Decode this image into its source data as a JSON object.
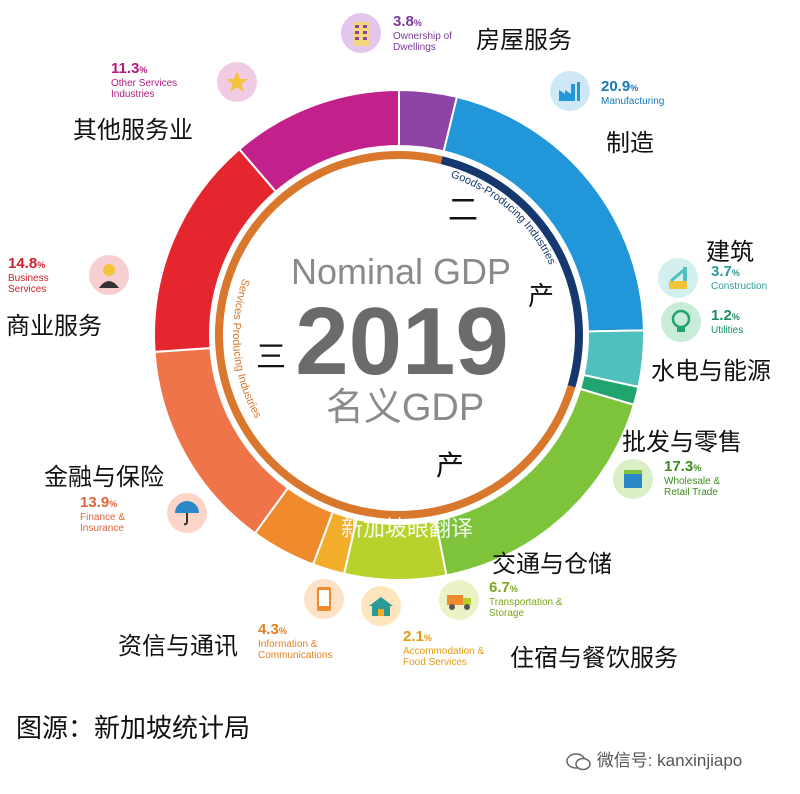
{
  "chart_data": {
    "type": "pie",
    "title": "Nominal GDP",
    "year": "2019",
    "title_cn": "名义GDP",
    "inner_ring": [
      {
        "label": "Goods-Producing Industries",
        "label_cn_top": "二",
        "label_cn_bottom": "产",
        "color": "#16386e"
      },
      {
        "label": "Services Producing Industries",
        "label_cn_left": "三",
        "label_cn_bottom": "产",
        "color": "#d9772d"
      }
    ],
    "slices": [
      {
        "pct": "3.8",
        "value": 3.8,
        "en": "Ownership of\nDwellings",
        "cn": "房屋服务",
        "color": "#8e44a6"
      },
      {
        "pct": "20.9",
        "value": 20.9,
        "en": "Manufacturing",
        "cn": "制造",
        "color": "#2196d8"
      },
      {
        "pct": "3.7",
        "value": 3.7,
        "en": "Construction",
        "cn": "建筑",
        "color": "#4fc0bd"
      },
      {
        "pct": "1.2",
        "value": 1.2,
        "en": "Utilities",
        "cn": "水电与能源",
        "color": "#1fa56d"
      },
      {
        "pct": "17.3",
        "value": 17.3,
        "en": "Wholesale &\nRetail Trade",
        "cn": "批发与零售",
        "color": "#7dc43b"
      },
      {
        "pct": "6.7",
        "value": 6.7,
        "en": "Transportation &\nStorage",
        "cn": "交通与仓储",
        "color": "#b9d12c"
      },
      {
        "pct": "2.1",
        "value": 2.1,
        "en": "Accommodation &\nFood Services",
        "cn": "住宿与餐饮服务",
        "color": "#f2ad2a"
      },
      {
        "pct": "4.3",
        "value": 4.3,
        "en": "Information &\nCommunications",
        "cn": "资信与通讯",
        "color": "#f08b2d"
      },
      {
        "pct": "13.9",
        "value": 13.9,
        "en": "Finance &\nInsurance",
        "cn": "金融与保险",
        "color": "#f0744a"
      },
      {
        "pct": "14.8",
        "value": 14.8,
        "en": "Business\nServices",
        "cn": "商业服务",
        "color": "#e5262e"
      },
      {
        "pct": "11.3",
        "value": 11.3,
        "en": "Other Services\nIndustries",
        "cn": "其他服务业",
        "color": "#c2218c"
      }
    ],
    "watermark": "新加坡眼翻译"
  },
  "source": "图源：新加坡统计局",
  "wechat": "微信号: kanxinjiapo",
  "pct_symbol": "%"
}
